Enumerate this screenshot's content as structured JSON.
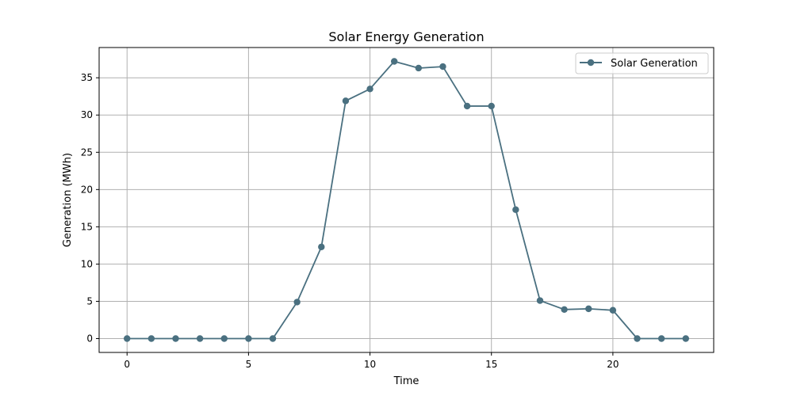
{
  "chart_data": {
    "type": "line",
    "title": "Solar Energy Generation",
    "xlabel": "Time",
    "ylabel": "Generation (MWh)",
    "xlim": [
      -1.15,
      24.15
    ],
    "ylim": [
      -1.86,
      39.06
    ],
    "xticks": [
      0,
      5,
      10,
      15,
      20
    ],
    "yticks": [
      0,
      5,
      10,
      15,
      20,
      25,
      30,
      35
    ],
    "grid": true,
    "legend_position": "top-right",
    "series": [
      {
        "name": "Solar Generation",
        "color": "#4a7080",
        "x": [
          0,
          1,
          2,
          3,
          4,
          5,
          6,
          7,
          8,
          9,
          10,
          11,
          12,
          13,
          14,
          15,
          16,
          17,
          18,
          19,
          20,
          21,
          22,
          23
        ],
        "y": [
          0,
          0,
          0,
          0,
          0,
          0,
          0,
          4.9,
          12.3,
          31.9,
          33.5,
          37.2,
          36.3,
          36.5,
          31.2,
          31.2,
          17.3,
          5.1,
          3.9,
          4.0,
          3.8,
          0,
          0,
          0
        ]
      }
    ]
  }
}
